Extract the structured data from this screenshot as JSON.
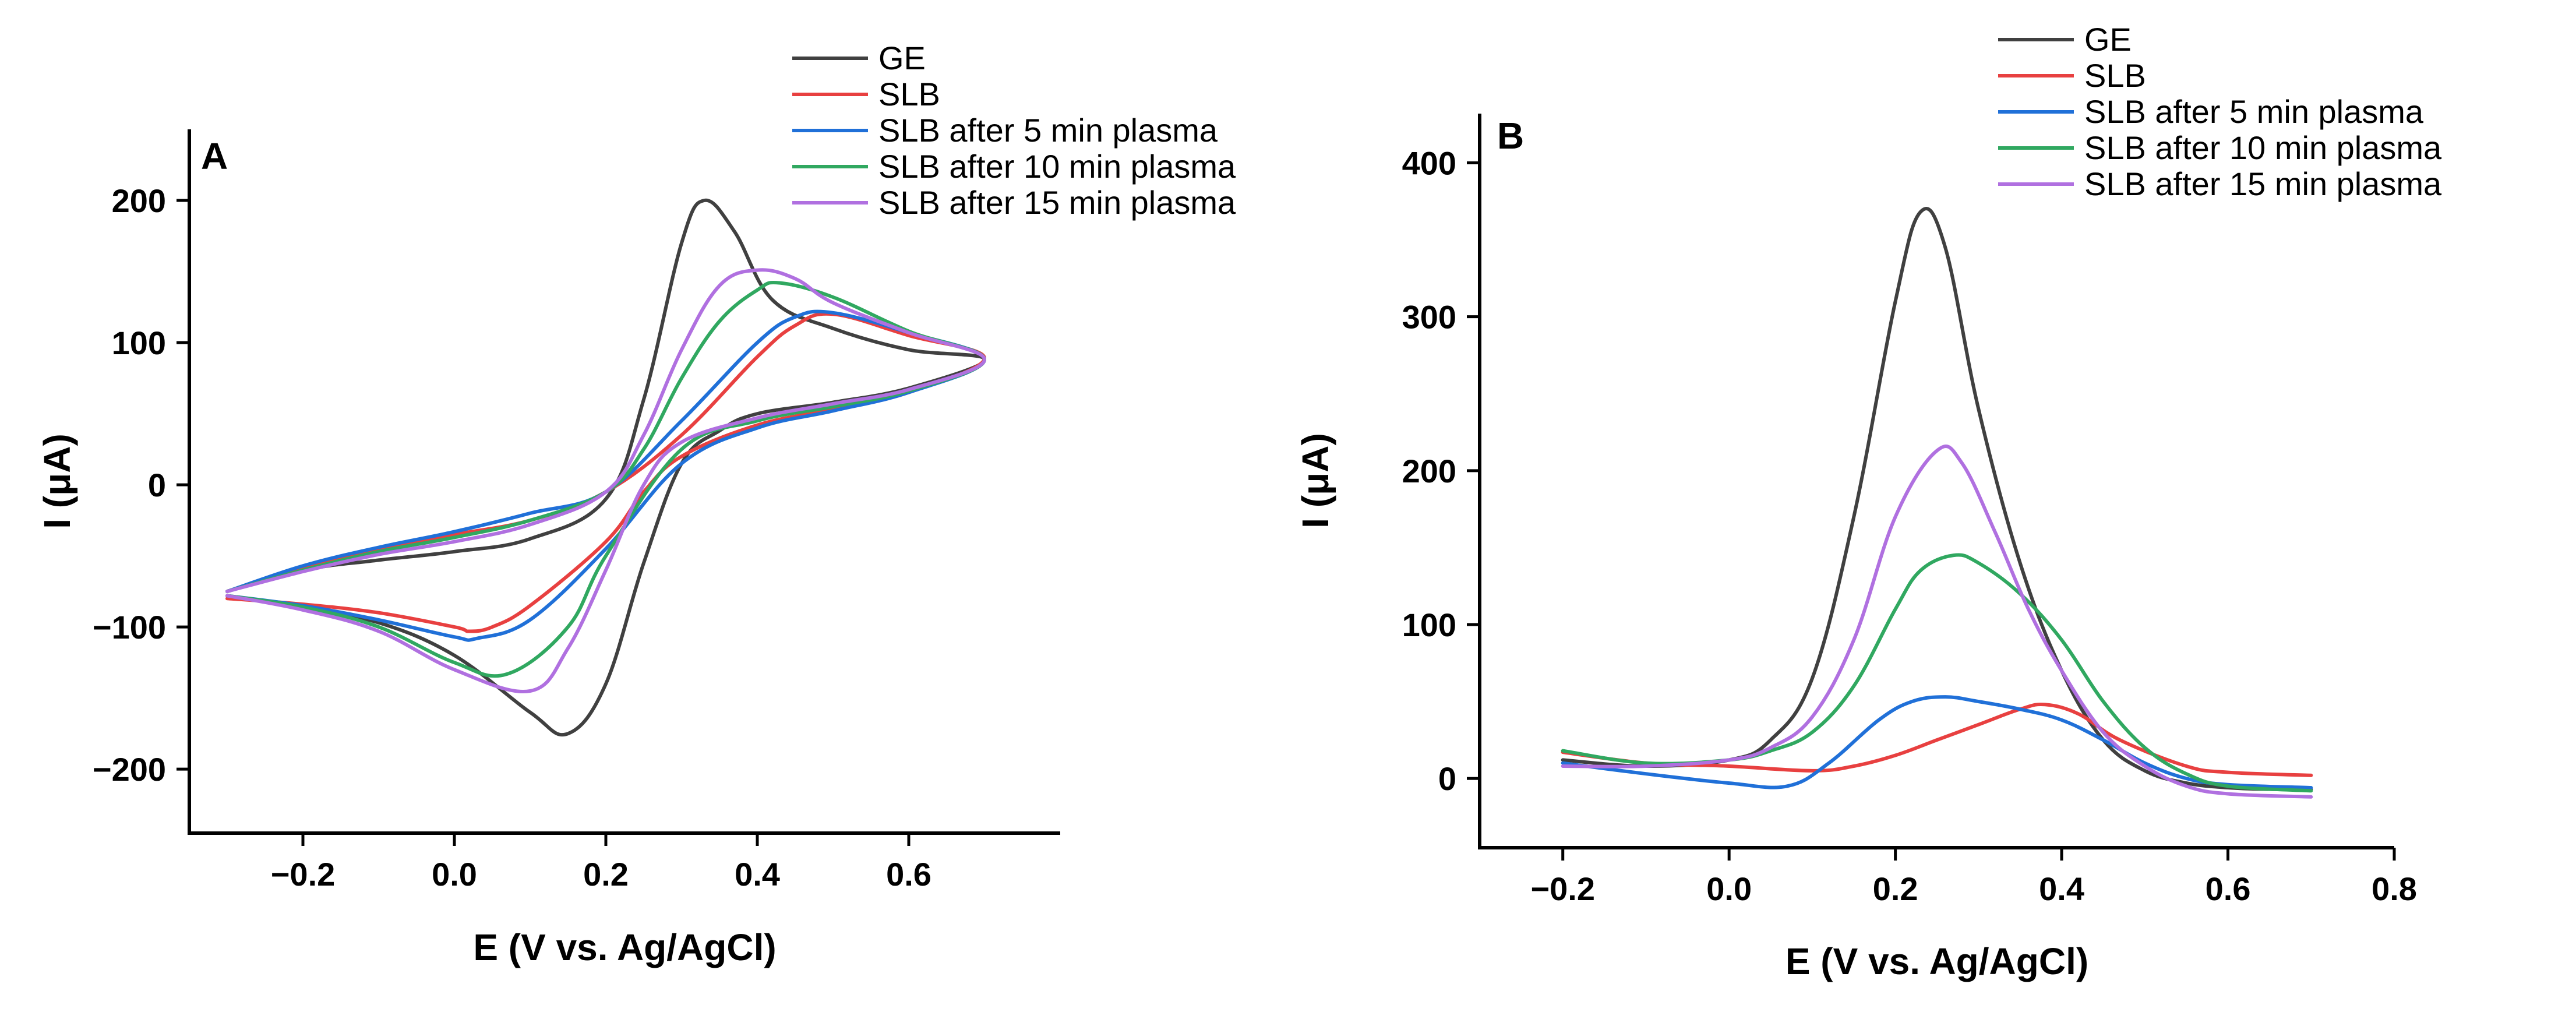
{
  "chart_data": [
    {
      "type": "line",
      "panel": "A",
      "xlabel": "E (V vs. Ag/AgCl)",
      "ylabel": "I (μA)",
      "xlim": [
        -0.35,
        0.8
      ],
      "ylim": [
        -245,
        250
      ],
      "xticks": [
        -0.2,
        0.0,
        0.2,
        0.4,
        0.6
      ],
      "xtick_labels": [
        "−0.2",
        "0.0",
        "0.2",
        "0.4",
        "0.6"
      ],
      "yticks": [
        -200,
        -100,
        0,
        100,
        200
      ],
      "ytick_labels": [
        "−200",
        "−100",
        "0",
        "100",
        "200"
      ],
      "legend_position": "top-right",
      "series": [
        {
          "name": "GE",
          "color": "#404040",
          "x": [
            -0.3,
            -0.2,
            -0.1,
            0.0,
            0.1,
            0.2,
            0.25,
            0.3,
            0.33,
            0.37,
            0.42,
            0.5,
            0.6,
            0.7,
            0.6,
            0.5,
            0.4,
            0.35,
            0.3,
            0.25,
            0.2,
            0.15,
            0.1,
            0.0,
            -0.1,
            -0.2,
            -0.3
          ],
          "y": [
            -75,
            -60,
            -53,
            -47,
            -38,
            -10,
            60,
            170,
            200,
            178,
            130,
            110,
            95,
            88,
            68,
            58,
            50,
            38,
            15,
            -55,
            -140,
            -175,
            -160,
            -120,
            -97,
            -87,
            -78
          ]
        },
        {
          "name": "SLB",
          "color": "#e84040",
          "x": [
            -0.3,
            -0.2,
            -0.1,
            0.0,
            0.1,
            0.2,
            0.3,
            0.4,
            0.45,
            0.5,
            0.6,
            0.7,
            0.6,
            0.5,
            0.4,
            0.3,
            0.25,
            0.2,
            0.1,
            0.05,
            0.02,
            0.0,
            -0.1,
            -0.2,
            -0.3
          ],
          "y": [
            -75,
            -58,
            -45,
            -35,
            -25,
            -5,
            35,
            90,
            112,
            120,
            105,
            89,
            65,
            53,
            42,
            20,
            -5,
            -40,
            -85,
            -100,
            -103,
            -100,
            -90,
            -84,
            -80
          ]
        },
        {
          "name": "SLB after 5 min plasma",
          "color": "#2070d8",
          "x": [
            -0.3,
            -0.2,
            -0.1,
            0.0,
            0.1,
            0.2,
            0.3,
            0.4,
            0.45,
            0.5,
            0.6,
            0.7,
            0.6,
            0.5,
            0.4,
            0.3,
            0.2,
            0.1,
            0.03,
            0.0,
            -0.1,
            -0.2,
            -0.3
          ],
          "y": [
            -75,
            -57,
            -44,
            -33,
            -20,
            -5,
            45,
            100,
            118,
            121,
            107,
            88,
            65,
            52,
            40,
            15,
            -45,
            -95,
            -108,
            -107,
            -95,
            -85,
            -78
          ]
        },
        {
          "name": "SLB after 10 min plasma",
          "color": "#30a860",
          "x": [
            -0.3,
            -0.2,
            -0.1,
            0.0,
            0.1,
            0.2,
            0.25,
            0.3,
            0.35,
            0.4,
            0.43,
            0.5,
            0.6,
            0.7,
            0.6,
            0.5,
            0.4,
            0.3,
            0.2,
            0.15,
            0.07,
            0.0,
            -0.1,
            -0.2,
            -0.3
          ],
          "y": [
            -75,
            -60,
            -47,
            -37,
            -25,
            -5,
            25,
            75,
            115,
            137,
            142,
            132,
            108,
            88,
            66,
            55,
            45,
            25,
            -50,
            -100,
            -133,
            -125,
            -100,
            -86,
            -78
          ]
        },
        {
          "name": "SLB after 15 min plasma",
          "color": "#b070e0",
          "x": [
            -0.3,
            -0.2,
            -0.1,
            0.0,
            0.1,
            0.2,
            0.25,
            0.3,
            0.35,
            0.4,
            0.45,
            0.5,
            0.6,
            0.7,
            0.6,
            0.5,
            0.4,
            0.3,
            0.25,
            0.2,
            0.15,
            0.1,
            0.0,
            -0.1,
            -0.2,
            -0.3
          ],
          "y": [
            -75,
            -61,
            -49,
            -40,
            -28,
            -5,
            35,
            95,
            140,
            151,
            145,
            128,
            107,
            88,
            67,
            57,
            47,
            30,
            0,
            -60,
            -115,
            -145,
            -130,
            -103,
            -88,
            -78
          ]
        }
      ]
    },
    {
      "type": "line",
      "panel": "B",
      "xlabel": "E (V vs. Ag/AgCl)",
      "ylabel": "I (μA)",
      "xlim": [
        -0.3,
        0.8
      ],
      "ylim": [
        -45,
        432
      ],
      "xticks": [
        -0.2,
        0.0,
        0.2,
        0.4,
        0.6,
        0.8
      ],
      "xtick_labels": [
        "−0.2",
        "0.0",
        "0.2",
        "0.4",
        "0.6",
        "0.8"
      ],
      "yticks": [
        0,
        100,
        200,
        300,
        400
      ],
      "ytick_labels": [
        "0",
        "100",
        "200",
        "300",
        "400"
      ],
      "legend_position": "top-right",
      "series": [
        {
          "name": "GE",
          "color": "#404040",
          "x": [
            -0.2,
            -0.1,
            0.0,
            0.05,
            0.1,
            0.15,
            0.2,
            0.23,
            0.26,
            0.3,
            0.35,
            0.4,
            0.45,
            0.5,
            0.55,
            0.6,
            0.65,
            0.7
          ],
          "y": [
            12,
            8,
            12,
            25,
            65,
            170,
            310,
            368,
            345,
            240,
            140,
            70,
            25,
            5,
            -3,
            -6,
            -7,
            -7
          ]
        },
        {
          "name": "SLB",
          "color": "#e84040",
          "x": [
            -0.2,
            -0.1,
            0.0,
            0.1,
            0.15,
            0.2,
            0.25,
            0.3,
            0.35,
            0.38,
            0.42,
            0.47,
            0.55,
            0.6,
            0.7
          ],
          "y": [
            17,
            10,
            8,
            5,
            8,
            15,
            25,
            35,
            45,
            48,
            42,
            25,
            8,
            4,
            2
          ]
        },
        {
          "name": "SLB after 5 min plasma",
          "color": "#2070d8",
          "x": [
            -0.2,
            -0.1,
            0.0,
            0.07,
            0.12,
            0.18,
            0.22,
            0.26,
            0.3,
            0.35,
            0.4,
            0.45,
            0.5,
            0.55,
            0.6,
            0.7
          ],
          "y": [
            10,
            3,
            -3,
            -5,
            10,
            38,
            50,
            53,
            50,
            45,
            38,
            25,
            10,
            0,
            -4,
            -6
          ]
        },
        {
          "name": "SLB after 10 min plasma",
          "color": "#30a860",
          "x": [
            -0.2,
            -0.1,
            0.0,
            0.05,
            0.1,
            0.15,
            0.2,
            0.23,
            0.27,
            0.3,
            0.35,
            0.4,
            0.45,
            0.5,
            0.55,
            0.6,
            0.7
          ],
          "y": [
            18,
            10,
            12,
            18,
            30,
            60,
            110,
            135,
            145,
            140,
            120,
            90,
            50,
            20,
            3,
            -5,
            -8
          ]
        },
        {
          "name": "SLB after 15 min plasma",
          "color": "#b070e0",
          "x": [
            -0.2,
            -0.1,
            0.0,
            0.05,
            0.1,
            0.15,
            0.2,
            0.25,
            0.28,
            0.32,
            0.36,
            0.4,
            0.45,
            0.5,
            0.55,
            0.6,
            0.7
          ],
          "y": [
            8,
            8,
            12,
            20,
            40,
            90,
            170,
            213,
            205,
            160,
            110,
            70,
            30,
            8,
            -5,
            -10,
            -12
          ]
        }
      ]
    }
  ]
}
